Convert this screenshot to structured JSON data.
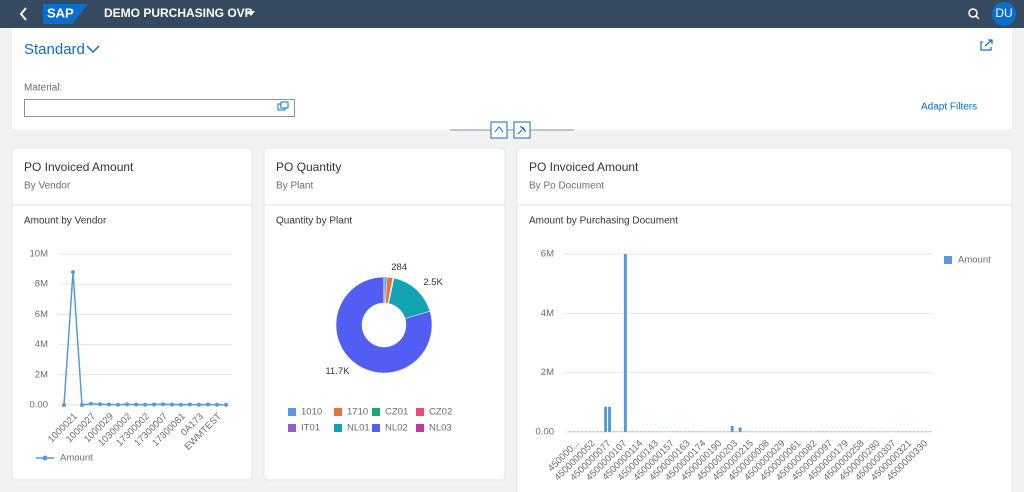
{
  "shell": {
    "logo": "SAP",
    "title": "DEMO PURCHASING OVP",
    "avatar": "DU"
  },
  "filter_bar": {
    "variant": "Standard",
    "field_label": "Material:",
    "adapt_filters": "Adapt Filters"
  },
  "cards": [
    {
      "title": "PO Invoiced Amount",
      "subtitle": "By Vendor",
      "chart_data": {
        "type": "line",
        "title": "Amount by Vendor",
        "categories": [
          null,
          "1000021",
          null,
          "1000027",
          null,
          "1000029",
          null,
          "10300002",
          null,
          "17300002",
          null,
          "17300007",
          null,
          "17300081",
          null,
          "0A173",
          null,
          "EWMTEST",
          null
        ],
        "series": [
          {
            "name": "Amount",
            "color": "#5899da",
            "values": [
              0,
              8800000,
              0,
              80000,
              50000,
              30000,
              20000,
              40000,
              30000,
              20000,
              30000,
              50000,
              30000,
              20000,
              30000,
              20000,
              30000,
              20000,
              20000
            ]
          }
        ],
        "ylim": [
          0,
          10000000
        ],
        "yticks": [
          {
            "value": 0,
            "label": "0.00"
          },
          {
            "value": 2000000,
            "label": "2M"
          },
          {
            "value": 4000000,
            "label": "4M"
          },
          {
            "value": 6000000,
            "label": "6M"
          },
          {
            "value": 8000000,
            "label": "8M"
          },
          {
            "value": 10000000,
            "label": "10M"
          }
        ],
        "grid": true,
        "legend": "bottom"
      }
    },
    {
      "title": "PO Quantity",
      "subtitle": "By Plant",
      "chart_data": {
        "type": "donut",
        "title": "Quantity by Plant",
        "categories": [
          "1010",
          "1710",
          "CZ01",
          "CZ02",
          "IT01",
          "NL01",
          "NL02",
          "NL03"
        ],
        "values": [
          150,
          284,
          40,
          10,
          10,
          2500,
          11700,
          10
        ],
        "value_labels": [
          null,
          "284",
          null,
          null,
          null,
          "2.5K",
          "11.7K",
          null
        ],
        "colors": [
          "#5899da",
          "#e8743b",
          "#19a979",
          "#ed4a7b",
          "#945ecf",
          "#13a4b4",
          "#525df4",
          "#bf399e"
        ],
        "legend": "bottom"
      }
    },
    {
      "title": "PO Invoiced Amount",
      "subtitle": "By Po Document",
      "chart_data": {
        "type": "bar",
        "title": "Amount by Purchasing Document",
        "categories": [
          null,
          null,
          "450000...",
          null,
          null,
          null,
          "4500000052",
          null,
          null,
          null,
          "4500000077",
          null,
          null,
          null,
          "4500000107",
          null,
          null,
          null,
          "4500000114",
          null,
          null,
          null,
          "4500000143",
          null,
          null,
          null,
          "4500000157",
          null,
          null,
          null,
          "4500000163",
          null,
          null,
          null,
          "4500000174",
          null,
          null,
          null,
          "4500000190",
          null,
          null,
          null,
          "4500000203",
          null,
          null,
          null,
          "4500000215",
          null,
          null,
          null,
          "4500000008",
          null,
          null,
          null,
          "4500000029",
          null,
          null,
          null,
          "4500000061",
          null,
          null,
          null,
          "4500000082",
          null,
          null,
          null,
          "4500000097",
          null,
          null,
          null,
          "4500000179",
          null,
          null,
          null,
          "4500000258",
          null,
          null,
          null,
          "4500000280",
          null,
          null,
          null,
          "4500000307",
          null,
          null,
          null,
          "4500000321",
          null,
          null,
          null,
          "4500000330",
          null
        ],
        "series": [
          {
            "name": "Amount",
            "color": "#5899da",
            "values": [
              15000,
              15000,
              15000,
              15000,
              15000,
              15000,
              15000,
              15000,
              15000,
              850000,
              850000,
              15000,
              15000,
              15000,
              6000000,
              15000,
              15000,
              15000,
              15000,
              15000,
              15000,
              15000,
              15000,
              15000,
              15000,
              15000,
              15000,
              15000,
              15000,
              15000,
              15000,
              15000,
              15000,
              15000,
              15000,
              15000,
              15000,
              15000,
              15000,
              15000,
              15000,
              200000,
              15000,
              150000,
              15000,
              15000,
              15000,
              15000,
              15000,
              15000,
              15000,
              15000,
              15000,
              15000,
              15000,
              15000,
              15000,
              15000,
              15000,
              15000,
              15000,
              15000,
              15000,
              15000,
              15000,
              15000,
              15000,
              15000,
              15000,
              15000,
              15000,
              15000,
              15000,
              15000,
              15000,
              15000,
              15000,
              15000,
              15000,
              15000,
              15000,
              15000,
              15000,
              15000,
              15000,
              15000,
              15000,
              15000,
              15000,
              15000,
              15000,
              15000
            ]
          }
        ],
        "ylim": [
          0,
          6000000
        ],
        "yticks": [
          {
            "value": 0,
            "label": "0.00"
          },
          {
            "value": 2000000,
            "label": "2M"
          },
          {
            "value": 4000000,
            "label": "4M"
          },
          {
            "value": 6000000,
            "label": "6M"
          }
        ],
        "grid": true,
        "legend": "top-right"
      }
    }
  ]
}
